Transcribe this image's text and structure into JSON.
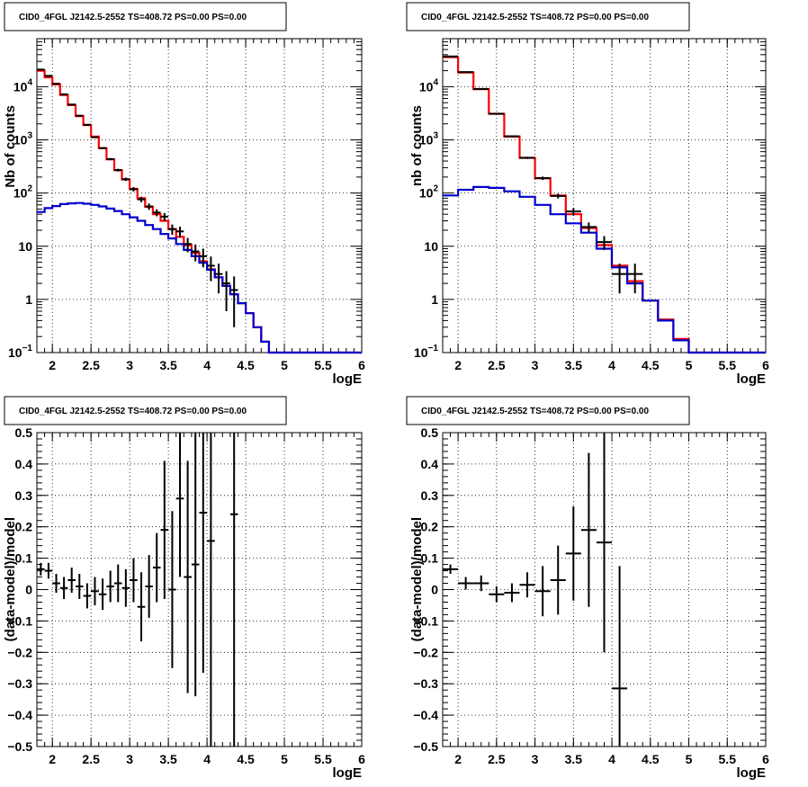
{
  "chart_data": [
    {
      "type": "step-histogram",
      "title": "CID0_4FGL J2142.5-2552 TS=408.72 PS=0.00 PS=0.00",
      "xlabel": "logE",
      "ylabel": "Nb of counts",
      "xlim": [
        1.8,
        6.0
      ],
      "ylim": [
        0.1,
        80000
      ],
      "ylog": true,
      "grid": true,
      "xticks": [
        "2",
        "2.5",
        "3",
        "3.5",
        "4",
        "4.5",
        "5",
        "5.5",
        "6"
      ],
      "yticks": [
        {
          "v": 0.1,
          "base": "10",
          "exp": "−1"
        },
        {
          "v": 1,
          "label": "1"
        },
        {
          "v": 10,
          "label": "10"
        },
        {
          "v": 100,
          "base": "10",
          "exp": "2"
        },
        {
          "v": 1000,
          "base": "10",
          "exp": "3"
        },
        {
          "v": 10000,
          "base": "10",
          "exp": "4"
        }
      ],
      "bin_edges": [
        1.8,
        1.9,
        2.0,
        2.1,
        2.2,
        2.3,
        2.4,
        2.5,
        2.6,
        2.7,
        2.8,
        2.9,
        3.0,
        3.1,
        3.2,
        3.3,
        3.4,
        3.5,
        3.6,
        3.7,
        3.8,
        3.9,
        4.0,
        4.1,
        4.2,
        4.3,
        4.4,
        4.5,
        4.6,
        4.7,
        4.8,
        4.9,
        5.0,
        5.1,
        5.2,
        5.3,
        5.4,
        5.5,
        5.6,
        5.7,
        5.8,
        5.9,
        6.0
      ],
      "series": [
        {
          "color": "#ff0000",
          "values": [
            20000,
            15000,
            11000,
            7000,
            4500,
            2800,
            1900,
            1150,
            700,
            430,
            270,
            180,
            120,
            80,
            55,
            40,
            30,
            21,
            15,
            10.5,
            7.5,
            5.2,
            3.7,
            2.6,
            1.8,
            1.25,
            0.85,
            0.55,
            0.3,
            0.16,
            0.1,
            0.1,
            0.1,
            0.1,
            0.1,
            0.1,
            0.1,
            0.1,
            0.1,
            0.1,
            0.1,
            0.1
          ]
        },
        {
          "color": "#0000cc",
          "values": [
            44,
            52,
            57,
            62,
            64,
            65,
            63,
            60,
            56,
            51,
            46,
            40,
            35,
            30,
            25,
            21,
            17,
            14,
            11,
            8.5,
            6.5,
            4.9,
            3.6,
            2.6,
            1.8,
            1.25,
            0.85,
            0.55,
            0.3,
            0.16,
            0.1,
            0.1,
            0.1,
            0.1,
            0.1,
            0.1,
            0.1,
            0.1,
            0.1,
            0.1,
            0.1,
            0.1
          ]
        }
      ],
      "data_points": [
        {
          "x": 1.85,
          "y": 21000,
          "err": 145
        },
        {
          "x": 1.95,
          "y": 16000,
          "err": 126
        },
        {
          "x": 2.05,
          "y": 11400,
          "err": 107
        },
        {
          "x": 2.15,
          "y": 7200,
          "err": 85
        },
        {
          "x": 2.25,
          "y": 4620,
          "err": 68
        },
        {
          "x": 2.35,
          "y": 2850,
          "err": 53
        },
        {
          "x": 2.45,
          "y": 1920,
          "err": 44
        },
        {
          "x": 2.55,
          "y": 1120,
          "err": 33
        },
        {
          "x": 2.65,
          "y": 700,
          "err": 26
        },
        {
          "x": 2.75,
          "y": 435,
          "err": 21
        },
        {
          "x": 2.85,
          "y": 270,
          "err": 16
        },
        {
          "x": 2.95,
          "y": 182,
          "err": 13
        },
        {
          "x": 3.05,
          "y": 118,
          "err": 11
        },
        {
          "x": 3.15,
          "y": 76,
          "err": 9
        },
        {
          "x": 3.25,
          "y": 56,
          "err": 7.5
        },
        {
          "x": 3.35,
          "y": 43,
          "err": 6.5
        },
        {
          "x": 3.45,
          "y": 36,
          "err": 6
        },
        {
          "x": 3.55,
          "y": 21,
          "err": 4.6
        },
        {
          "x": 3.65,
          "y": 19,
          "err": 4.4
        },
        {
          "x": 3.75,
          "y": 11,
          "err": 3.3
        },
        {
          "x": 3.85,
          "y": 8,
          "err": 2.8
        },
        {
          "x": 3.95,
          "y": 6.5,
          "err": 2.5
        },
        {
          "x": 4.05,
          "y": 4.3,
          "err": 2.1
        },
        {
          "x": 4.15,
          "y": 3,
          "err": 1.7
        },
        {
          "x": 4.25,
          "y": 2,
          "err": 1.4
        },
        {
          "x": 4.35,
          "y": 1.5,
          "err": 1.2
        }
      ]
    },
    {
      "type": "step-histogram",
      "title": "CID0_4FGL J2142.5-2552 TS=408.72 PS=0.00 PS=0.00",
      "xlabel": "logE",
      "ylabel": "nb of counts",
      "xlim": [
        1.8,
        6.0
      ],
      "ylim": [
        0.1,
        80000
      ],
      "ylog": true,
      "grid": true,
      "xticks": [
        "2",
        "2.5",
        "3",
        "3.5",
        "4",
        "4.5",
        "5",
        "5.5",
        "6"
      ],
      "yticks": [
        {
          "v": 0.1,
          "base": "10",
          "exp": "−1"
        },
        {
          "v": 1,
          "label": "1"
        },
        {
          "v": 10,
          "label": "10"
        },
        {
          "v": 100,
          "base": "10",
          "exp": "2"
        },
        {
          "v": 1000,
          "base": "10",
          "exp": "3"
        },
        {
          "v": 10000,
          "base": "10",
          "exp": "4"
        }
      ],
      "bin_edges": [
        1.8,
        2.0,
        2.2,
        2.4,
        2.6,
        2.8,
        3.0,
        3.2,
        3.4,
        3.6,
        3.8,
        4.0,
        4.2,
        4.4,
        4.6,
        4.8,
        5.0,
        5.2,
        5.4,
        5.6,
        5.8,
        6.0
      ],
      "series": [
        {
          "color": "#ff0000",
          "values": [
            36000,
            18500,
            9000,
            3100,
            1150,
            460,
            190,
            90,
            40,
            22,
            10.5,
            4.3,
            2.2,
            0.95,
            0.42,
            0.18,
            0.1,
            0.1,
            0.1,
            0.1,
            0.1
          ]
        },
        {
          "color": "#0000cc",
          "values": [
            90,
            115,
            130,
            125,
            108,
            85,
            60,
            40,
            27,
            18,
            9,
            4,
            2,
            0.95,
            0.4,
            0.17,
            0.1,
            0.1,
            0.1,
            0.1,
            0.1
          ]
        }
      ],
      "data_points": [
        {
          "x": 1.9,
          "y": 37000,
          "err": 192
        },
        {
          "x": 2.1,
          "y": 18800,
          "err": 137
        },
        {
          "x": 2.3,
          "y": 9100,
          "err": 95
        },
        {
          "x": 2.5,
          "y": 3100,
          "err": 56
        },
        {
          "x": 2.7,
          "y": 1170,
          "err": 34
        },
        {
          "x": 2.9,
          "y": 460,
          "err": 21
        },
        {
          "x": 3.1,
          "y": 190,
          "err": 14
        },
        {
          "x": 3.3,
          "y": 88,
          "err": 9
        },
        {
          "x": 3.5,
          "y": 45,
          "err": 7
        },
        {
          "x": 3.7,
          "y": 23,
          "err": 5
        },
        {
          "x": 3.9,
          "y": 12,
          "err": 3.5
        },
        {
          "x": 4.1,
          "y": 3,
          "err": 1.7
        },
        {
          "x": 4.3,
          "y": 3,
          "err": 1.7
        }
      ]
    },
    {
      "type": "residuals",
      "title": "CID0_4FGL J2142.5-2552 TS=408.72 PS=0.00 PS=0.00",
      "xlabel": "logE",
      "ylabel": "(data-model)/model",
      "xlim": [
        1.8,
        6.0
      ],
      "ylim": [
        -0.5,
        0.5
      ],
      "grid": true,
      "xticks": [
        "2",
        "2.5",
        "3",
        "3.5",
        "4",
        "4.5",
        "5",
        "5.5",
        "6"
      ],
      "yticks": [
        "−0.5",
        "−0.4",
        "−0.3",
        "−0.2",
        "−0.1",
        "0",
        "0.1",
        "0.2",
        "0.3",
        "0.4",
        "0.5"
      ],
      "bin_halfwidth": 0.05,
      "points": [
        {
          "x": 1.85,
          "y": 0.065,
          "err": 0.02
        },
        {
          "x": 1.95,
          "y": 0.06,
          "err": 0.025
        },
        {
          "x": 2.05,
          "y": 0.02,
          "err": 0.03
        },
        {
          "x": 2.15,
          "y": 0.005,
          "err": 0.035
        },
        {
          "x": 2.25,
          "y": 0.03,
          "err": 0.04
        },
        {
          "x": 2.35,
          "y": 0.01,
          "err": 0.04
        },
        {
          "x": 2.45,
          "y": -0.02,
          "err": 0.04
        },
        {
          "x": 2.55,
          "y": -0.005,
          "err": 0.045
        },
        {
          "x": 2.65,
          "y": -0.015,
          "err": 0.05
        },
        {
          "x": 2.75,
          "y": 0.01,
          "err": 0.05
        },
        {
          "x": 2.85,
          "y": 0.02,
          "err": 0.06
        },
        {
          "x": 2.95,
          "y": 0.005,
          "err": 0.06
        },
        {
          "x": 3.05,
          "y": 0.03,
          "err": 0.07
        },
        {
          "x": 3.15,
          "y": -0.055,
          "err": 0.11
        },
        {
          "x": 3.25,
          "y": 0.01,
          "err": 0.1
        },
        {
          "x": 3.35,
          "y": 0.07,
          "err": 0.11
        },
        {
          "x": 3.45,
          "y": 0.19,
          "err": 0.22
        },
        {
          "x": 3.55,
          "y": 0,
          "err": 0.25
        },
        {
          "x": 3.65,
          "y": 0.29,
          "err": 0.25
        },
        {
          "x": 3.75,
          "y": 0.04,
          "err": 0.37
        },
        {
          "x": 3.85,
          "y": 0.08,
          "err": 0.42
        },
        {
          "x": 3.95,
          "y": 0.245,
          "err": 0.51
        },
        {
          "x": 4.05,
          "y": 0.155,
          "err": 0.66
        },
        {
          "x": 4.35,
          "y": 0.24,
          "err": 0.8
        }
      ]
    },
    {
      "type": "residuals",
      "title": "CID0_4FGL J2142.5-2552 TS=408.72 PS=0.00 PS=0.00",
      "xlabel": "logE",
      "ylabel": "(data-model)/model",
      "xlim": [
        1.8,
        6.0
      ],
      "ylim": [
        -0.5,
        0.5
      ],
      "grid": true,
      "xticks": [
        "2",
        "2.5",
        "3",
        "3.5",
        "4",
        "4.5",
        "5",
        "5.5",
        "6"
      ],
      "yticks": [
        "−0.5",
        "−0.4",
        "−0.3",
        "−0.2",
        "−0.1",
        "0",
        "0.1",
        "0.2",
        "0.3",
        "0.4",
        "0.5"
      ],
      "bin_halfwidth": 0.1,
      "points": [
        {
          "x": 1.9,
          "y": 0.065,
          "err": 0.015
        },
        {
          "x": 2.1,
          "y": 0.02,
          "err": 0.02
        },
        {
          "x": 2.3,
          "y": 0.02,
          "err": 0.025
        },
        {
          "x": 2.5,
          "y": -0.015,
          "err": 0.025
        },
        {
          "x": 2.7,
          "y": -0.01,
          "err": 0.03
        },
        {
          "x": 2.9,
          "y": 0.015,
          "err": 0.04
        },
        {
          "x": 3.1,
          "y": -0.005,
          "err": 0.08
        },
        {
          "x": 3.3,
          "y": 0.03,
          "err": 0.11
        },
        {
          "x": 3.5,
          "y": 0.115,
          "err": 0.15
        },
        {
          "x": 3.7,
          "y": 0.19,
          "err": 0.245
        },
        {
          "x": 3.9,
          "y": 0.15,
          "err": 0.35
        },
        {
          "x": 4.1,
          "y": -0.315,
          "err": 0.39
        }
      ]
    }
  ]
}
